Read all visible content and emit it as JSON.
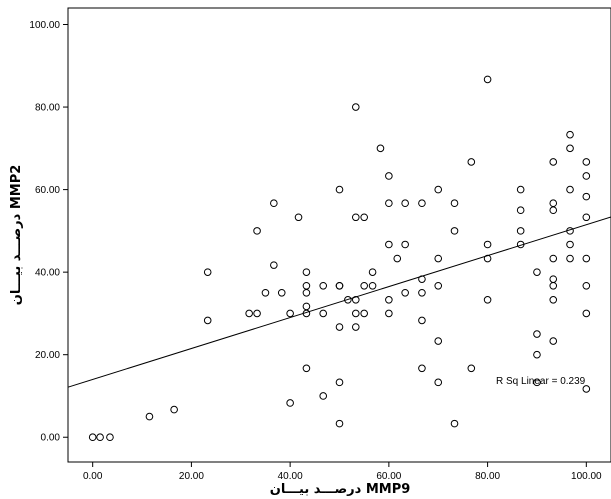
{
  "chart_data": {
    "type": "scatter",
    "xlabel": "درصـــد بيـــان MMP9",
    "ylabel": "درصـــد بيـــان MMP2",
    "xlim": [
      -5,
      105
    ],
    "ylim": [
      -6,
      104
    ],
    "x_ticks": [
      "0.00",
      "20.00",
      "40.00",
      "60.00",
      "80.00",
      "100.00"
    ],
    "y_ticks": [
      "0.00",
      "20.00",
      "40.00",
      "60.00",
      "80.00",
      "100.00"
    ],
    "grid": false,
    "legend": "none",
    "annotation": "R Sq Linear = 0.239",
    "fit_line": {
      "intercept": 14.0,
      "slope": 0.375
    },
    "points": [
      [
        0,
        0
      ],
      [
        1.5,
        0
      ],
      [
        3.5,
        0
      ],
      [
        11.5,
        5
      ],
      [
        16.5,
        6.7
      ],
      [
        23.3,
        40
      ],
      [
        23.3,
        28.3
      ],
      [
        31.7,
        30
      ],
      [
        33.3,
        30
      ],
      [
        33.3,
        50
      ],
      [
        35,
        35
      ],
      [
        36.7,
        56.7
      ],
      [
        36.7,
        41.7
      ],
      [
        38.3,
        35
      ],
      [
        40,
        8.3
      ],
      [
        40,
        30
      ],
      [
        41.7,
        53.3
      ],
      [
        43.3,
        40
      ],
      [
        43.3,
        36.7
      ],
      [
        43.3,
        35
      ],
      [
        43.3,
        31.7
      ],
      [
        43.3,
        30
      ],
      [
        43.3,
        16.7
      ],
      [
        46.7,
        36.7
      ],
      [
        46.7,
        30
      ],
      [
        46.7,
        10
      ],
      [
        50,
        60
      ],
      [
        50,
        36.7
      ],
      [
        50,
        36.7
      ],
      [
        50,
        26.7
      ],
      [
        50,
        13.3
      ],
      [
        50,
        3.3
      ],
      [
        51.7,
        33.3
      ],
      [
        53.3,
        80
      ],
      [
        53.3,
        53.3
      ],
      [
        53.3,
        33.3
      ],
      [
        53.3,
        30
      ],
      [
        53.3,
        26.7
      ],
      [
        55,
        53.3
      ],
      [
        55,
        36.7
      ],
      [
        55,
        30
      ],
      [
        56.7,
        40
      ],
      [
        56.7,
        36.7
      ],
      [
        58.3,
        70
      ],
      [
        60,
        63.3
      ],
      [
        60,
        56.7
      ],
      [
        60,
        46.7
      ],
      [
        60,
        33.3
      ],
      [
        60,
        30
      ],
      [
        61.7,
        43.3
      ],
      [
        63.3,
        56.7
      ],
      [
        63.3,
        46.7
      ],
      [
        63.3,
        35
      ],
      [
        66.7,
        56.7
      ],
      [
        66.7,
        38.3
      ],
      [
        66.7,
        35
      ],
      [
        66.7,
        28.3
      ],
      [
        66.7,
        16.7
      ],
      [
        70,
        60
      ],
      [
        70,
        43.3
      ],
      [
        70,
        36.7
      ],
      [
        70,
        23.3
      ],
      [
        70,
        13.3
      ],
      [
        73.3,
        56.7
      ],
      [
        73.3,
        50
      ],
      [
        73.3,
        3.3
      ],
      [
        76.7,
        66.7
      ],
      [
        76.7,
        16.7
      ],
      [
        80,
        86.7
      ],
      [
        80,
        46.7
      ],
      [
        80,
        43.3
      ],
      [
        80,
        33.3
      ],
      [
        86.7,
        60
      ],
      [
        86.7,
        55
      ],
      [
        86.7,
        50
      ],
      [
        86.7,
        46.7
      ],
      [
        90,
        40
      ],
      [
        90,
        25
      ],
      [
        90,
        20
      ],
      [
        90,
        13.3
      ],
      [
        93.3,
        66.7
      ],
      [
        93.3,
        56.7
      ],
      [
        93.3,
        55
      ],
      [
        93.3,
        43.3
      ],
      [
        93.3,
        38.3
      ],
      [
        93.3,
        36.7
      ],
      [
        93.3,
        33.3
      ],
      [
        93.3,
        23.3
      ],
      [
        96.7,
        73.3
      ],
      [
        96.7,
        70
      ],
      [
        96.7,
        60
      ],
      [
        96.7,
        50
      ],
      [
        96.7,
        46.7
      ],
      [
        96.7,
        43.3
      ],
      [
        100,
        66.7
      ],
      [
        100,
        63.3
      ],
      [
        100,
        58.3
      ],
      [
        100,
        53.3
      ],
      [
        100,
        43.3
      ],
      [
        100,
        36.7
      ],
      [
        100,
        30
      ],
      [
        100,
        11.7
      ]
    ]
  }
}
